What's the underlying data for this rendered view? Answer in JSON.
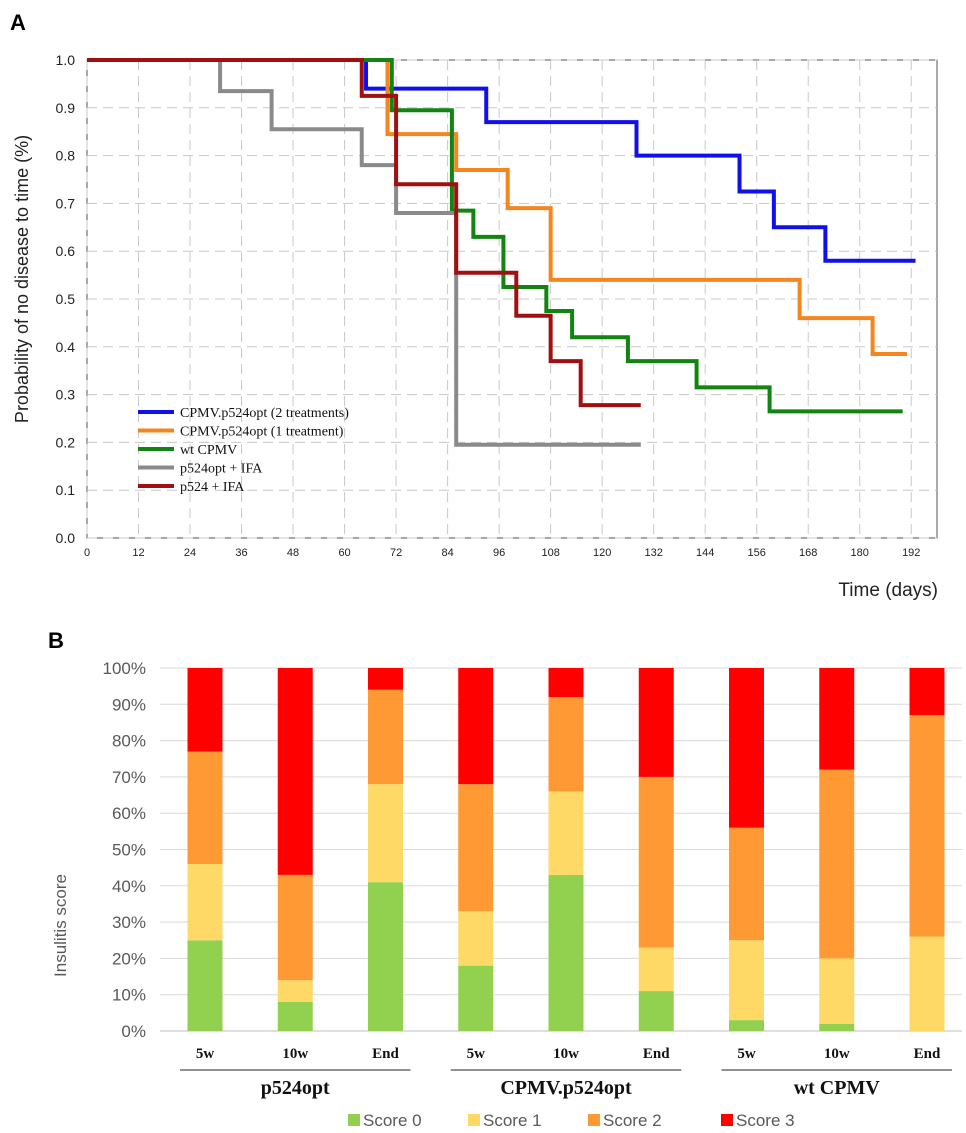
{
  "panels": {
    "a_letter": "A",
    "b_letter": "B"
  },
  "chart_data": [
    {
      "type": "line",
      "panel": "A",
      "step": true,
      "xlabel": "Time (days)",
      "ylabel": "Probability of no disease to time (%)",
      "xlim": [
        0,
        198
      ],
      "ylim": [
        0,
        1.0
      ],
      "xticks": [
        "0",
        "12",
        "24",
        "36",
        "48",
        "60",
        "72",
        "84",
        "96",
        "108",
        "120",
        "132",
        "144",
        "156",
        "168",
        "180",
        "192"
      ],
      "yticks": [
        "0.0",
        "0.1",
        "0.2",
        "0.3",
        "0.4",
        "0.5",
        "0.6",
        "0.7",
        "0.8",
        "0.9",
        "1.0"
      ],
      "grid": true,
      "legend_position": "bottom-left",
      "series": [
        {
          "name": "CPMV.p524opt (2 treatments)",
          "color": "#1010e8",
          "x": [
            0,
            65,
            93,
            128,
            152,
            160,
            172,
            193
          ],
          "y": [
            1.0,
            0.94,
            0.87,
            0.8,
            0.725,
            0.65,
            0.58,
            0.58
          ]
        },
        {
          "name": "CPMV.p524opt (1 treatment)",
          "color": "#f5861f",
          "x": [
            0,
            70,
            86,
            98,
            108,
            166,
            183,
            191
          ],
          "y": [
            1.0,
            0.845,
            0.77,
            0.69,
            0.54,
            0.46,
            0.385,
            0.385
          ]
        },
        {
          "name": "wt CPMV",
          "color": "#128412",
          "x": [
            0,
            71,
            85,
            90,
            97,
            107,
            113,
            126,
            142,
            159,
            190
          ],
          "y": [
            1.0,
            0.895,
            0.685,
            0.63,
            0.525,
            0.475,
            0.42,
            0.37,
            0.315,
            0.265,
            0.265
          ]
        },
        {
          "name": "p524opt + IFA",
          "color": "#8a8a8a",
          "x": [
            0,
            31,
            43,
            64,
            72,
            86,
            129
          ],
          "y": [
            1.0,
            0.935,
            0.855,
            0.78,
            0.68,
            0.195,
            0.195
          ]
        },
        {
          "name": "p524 + IFA",
          "color": "#a01010",
          "x": [
            0,
            64,
            72,
            86,
            100,
            108,
            115,
            129
          ],
          "y": [
            1.0,
            0.925,
            0.74,
            0.555,
            0.465,
            0.37,
            0.278,
            0.278
          ]
        }
      ]
    },
    {
      "type": "bar",
      "stacked": true,
      "percent": true,
      "panel": "B",
      "ylabel": "Insulitis score",
      "ylim": [
        0,
        100
      ],
      "yticks": [
        "0%",
        "10%",
        "20%",
        "30%",
        "40%",
        "50%",
        "60%",
        "70%",
        "80%",
        "90%",
        "100%"
      ],
      "grid": true,
      "legend_position": "bottom",
      "groups": [
        "p524opt",
        "CPMV.p524opt",
        "wt CPMV"
      ],
      "categories": [
        "5w",
        "10w",
        "End",
        "5w",
        "10w",
        "End",
        "5w",
        "10w",
        "End"
      ],
      "series": [
        {
          "name": "Score 0",
          "color": "#92d050",
          "values": [
            25,
            8,
            41,
            18,
            43,
            11,
            3,
            2,
            0
          ]
        },
        {
          "name": "Score 1",
          "color": "#ffd966",
          "values": [
            21,
            6,
            27,
            15,
            23,
            12,
            22,
            18,
            26
          ]
        },
        {
          "name": "Score 2",
          "color": "#ff9933",
          "values": [
            31,
            29,
            26,
            35,
            26,
            47,
            31,
            52,
            61
          ]
        },
        {
          "name": "Score 3",
          "color": "#ff0000",
          "values": [
            23,
            57,
            6,
            32,
            8,
            30,
            44,
            28,
            13
          ]
        }
      ]
    }
  ]
}
